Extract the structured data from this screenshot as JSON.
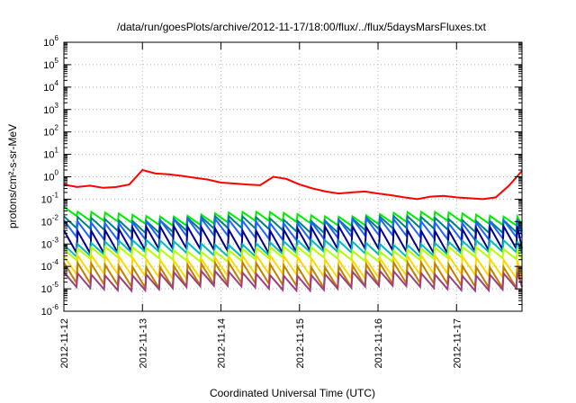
{
  "chart_data": {
    "type": "line",
    "title": "/data/run/goesPlots/archive/2012-11-17/18:00/flux/../flux/5daysMarsFluxes.txt",
    "xlabel": "Coordinated Universal Time (UTC)",
    "ylabel": "protons/cm²-s-sr-MeV",
    "y_scale": "log",
    "ylim": [
      1e-06,
      1000000.0
    ],
    "y_ticks": [
      {
        "base": "10",
        "exp": "-6"
      },
      {
        "base": "10",
        "exp": "-5"
      },
      {
        "base": "10",
        "exp": "-4"
      },
      {
        "base": "10",
        "exp": "-3"
      },
      {
        "base": "10",
        "exp": "-2"
      },
      {
        "base": "10",
        "exp": "-1"
      },
      {
        "base": "10",
        "exp": "0"
      },
      {
        "base": "10",
        "exp": "1"
      },
      {
        "base": "10",
        "exp": "2"
      },
      {
        "base": "10",
        "exp": "3"
      },
      {
        "base": "10",
        "exp": "4"
      },
      {
        "base": "10",
        "exp": "5"
      },
      {
        "base": "10",
        "exp": "6"
      }
    ],
    "xlim": [
      "2012-11-12",
      "2012-11-17T20:00"
    ],
    "x_ticks": [
      "2012-11-12",
      "2012-11-13",
      "2012-11-14",
      "2012-11-15",
      "2012-11-16",
      "2012-11-17"
    ],
    "grid": true,
    "series": [
      {
        "color": "#ff0000",
        "x": [
          "2012-11-12T00:00",
          "2012-11-12T04:00",
          "2012-11-12T08:00",
          "2012-11-12T12:00",
          "2012-11-12T16:00",
          "2012-11-12T20:00",
          "2012-11-13T00:00",
          "2012-11-13T04:00",
          "2012-11-13T08:00",
          "2012-11-13T12:00",
          "2012-11-13T16:00",
          "2012-11-13T20:00",
          "2012-11-14T00:00",
          "2012-11-14T04:00",
          "2012-11-14T08:00",
          "2012-11-14T12:00",
          "2012-11-14T16:00",
          "2012-11-14T20:00",
          "2012-11-15T00:00",
          "2012-11-15T04:00",
          "2012-11-15T08:00",
          "2012-11-15T12:00",
          "2012-11-15T16:00",
          "2012-11-15T20:00",
          "2012-11-16T00:00",
          "2012-11-16T04:00",
          "2012-11-16T08:00",
          "2012-11-16T12:00",
          "2012-11-16T16:00",
          "2012-11-16T20:00",
          "2012-11-17T00:00",
          "2012-11-17T04:00",
          "2012-11-17T08:00",
          "2012-11-17T12:00",
          "2012-11-17T16:00",
          "2012-11-17T20:00"
        ],
        "values": [
          0.45,
          0.35,
          0.4,
          0.32,
          0.35,
          0.45,
          2.0,
          1.4,
          1.3,
          1.1,
          0.9,
          0.75,
          0.55,
          0.5,
          0.45,
          0.42,
          1.0,
          0.8,
          0.45,
          0.3,
          0.22,
          0.18,
          0.2,
          0.22,
          0.18,
          0.15,
          0.12,
          0.1,
          0.13,
          0.14,
          0.12,
          0.11,
          0.1,
          0.12,
          0.4,
          1.8
        ]
      },
      {
        "color": "#00ee00",
        "base": 0.022,
        "low_factor": 0.4,
        "first_peak": 0.045
      },
      {
        "color": "#008080",
        "base": 0.014,
        "low_factor": 0.3
      },
      {
        "color": "#1e64ff",
        "base": 0.011,
        "low_factor": 0.18
      },
      {
        "color": "#00008b",
        "base": 0.005,
        "low_factor": 0.1
      },
      {
        "color": "#00bcbc",
        "base": 0.0012,
        "low_factor": 0.3
      },
      {
        "color": "#b4ff00",
        "base": 0.0006,
        "low_factor": 0.35
      },
      {
        "color": "#ffd700",
        "base": 0.00025,
        "low_factor": 0.15
      },
      {
        "color": "#c08000",
        "base": 0.00012,
        "low_factor": 0.12
      },
      {
        "color": "#a0407a",
        "base": 5e-05,
        "low_factor": 0.22
      }
    ],
    "sawtooth_period_hours": 4.2
  }
}
